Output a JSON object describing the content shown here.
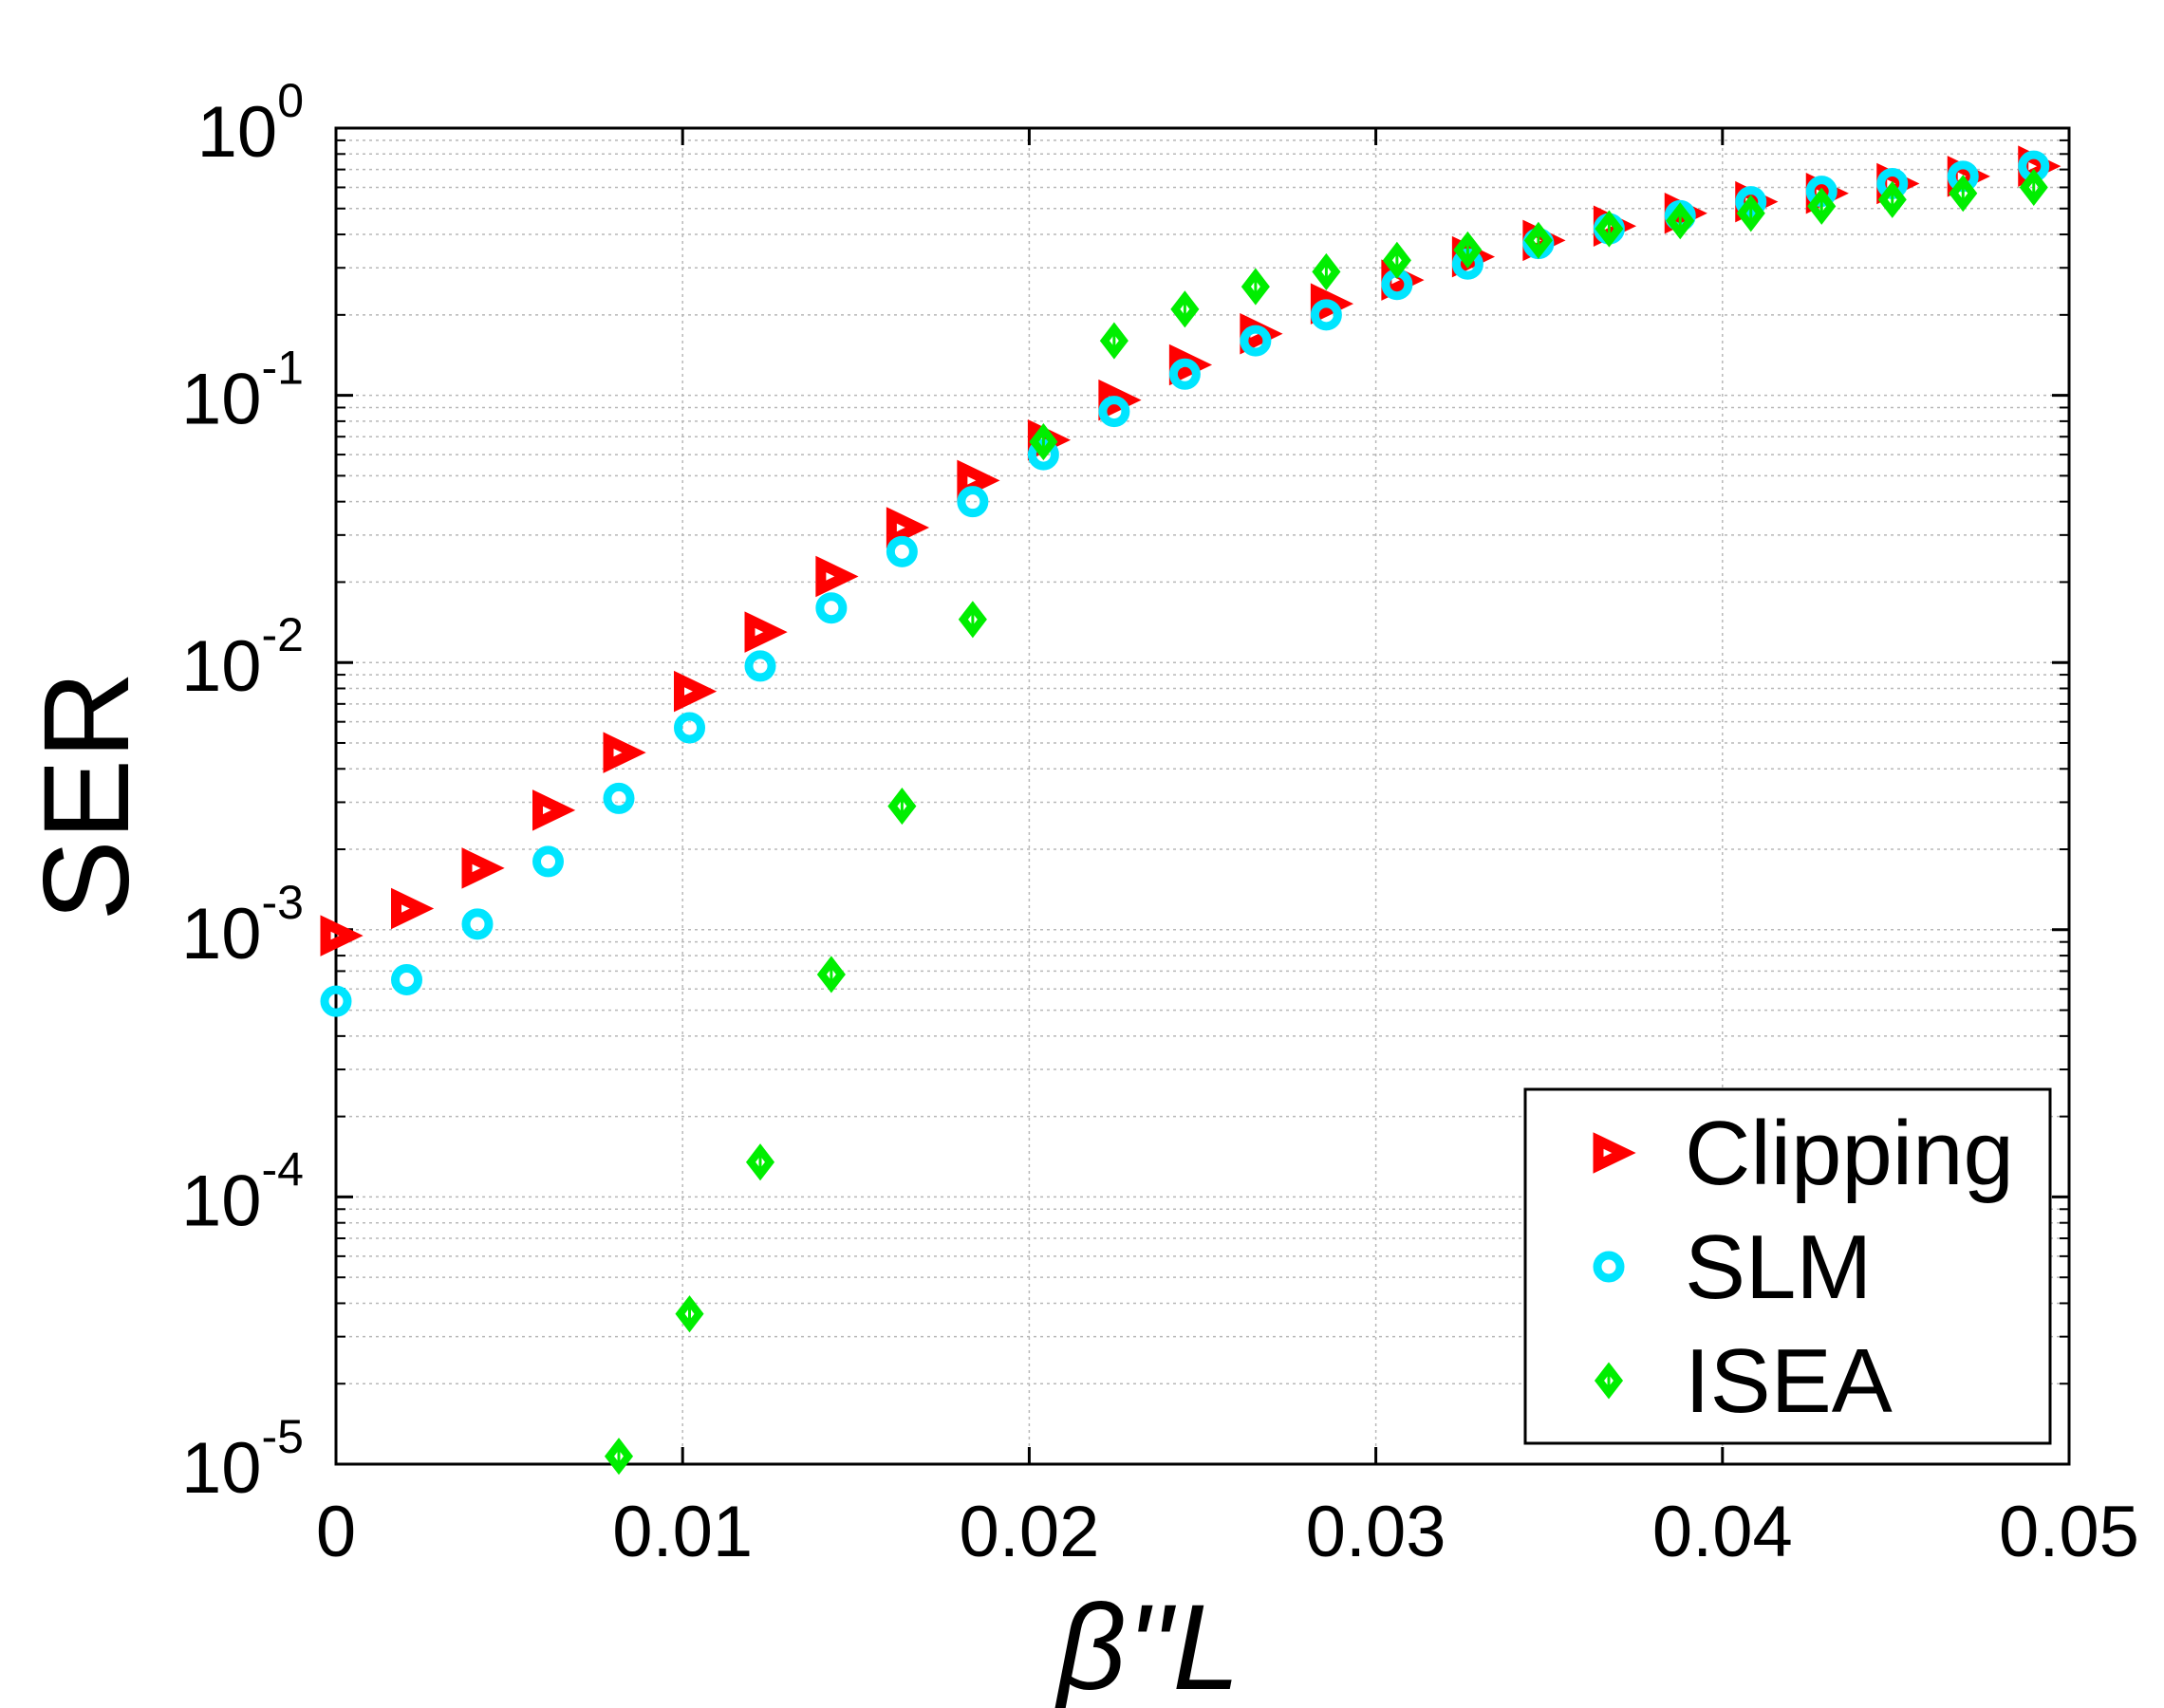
{
  "chart_data": {
    "type": "scatter",
    "title": "",
    "xlabel": "β''L",
    "ylabel": "SER",
    "xlim": [
      0,
      0.05
    ],
    "ylim": [
      1e-05,
      1
    ],
    "yscale": "log",
    "grid": true,
    "legend_position": "bottom-right",
    "x_ticks": [
      {
        "value": 0,
        "label": "0"
      },
      {
        "value": 0.01,
        "label": "0.01"
      },
      {
        "value": 0.02,
        "label": "0.02"
      },
      {
        "value": 0.03,
        "label": "0.03"
      },
      {
        "value": 0.04,
        "label": "0.04"
      },
      {
        "value": 0.05,
        "label": "0.05"
      }
    ],
    "y_ticks": [
      {
        "value": 1,
        "base": "10",
        "exp": "0"
      },
      {
        "value": 0.1,
        "base": "10",
        "exp": "-1"
      },
      {
        "value": 0.01,
        "base": "10",
        "exp": "-2"
      },
      {
        "value": 0.001,
        "base": "10",
        "exp": "-3"
      },
      {
        "value": 0.0001,
        "base": "10",
        "exp": "-4"
      },
      {
        "value": 1e-05,
        "base": "10",
        "exp": "-5"
      }
    ],
    "series": [
      {
        "name": "Clipping",
        "marker": "triangle-right",
        "color": "#ff0000",
        "x": [
          0,
          0.00204,
          0.00408,
          0.00612,
          0.00816,
          0.0102,
          0.01224,
          0.01429,
          0.01633,
          0.01837,
          0.02041,
          0.02245,
          0.02449,
          0.02653,
          0.02857,
          0.03061,
          0.03265,
          0.03469,
          0.03673,
          0.03878,
          0.04082,
          0.04286,
          0.0449,
          0.04694,
          0.04898
        ],
        "y": [
          0.00095,
          0.0012,
          0.0017,
          0.0028,
          0.0046,
          0.0078,
          0.013,
          0.021,
          0.032,
          0.048,
          0.068,
          0.096,
          0.13,
          0.17,
          0.22,
          0.27,
          0.33,
          0.38,
          0.43,
          0.48,
          0.53,
          0.57,
          0.62,
          0.66,
          0.72
        ]
      },
      {
        "name": "SLM",
        "marker": "circle",
        "color": "#00e5ff",
        "x": [
          0,
          0.00204,
          0.00408,
          0.00612,
          0.00816,
          0.0102,
          0.01224,
          0.01429,
          0.01633,
          0.01837,
          0.02041,
          0.02245,
          0.02449,
          0.02653,
          0.02857,
          0.03061,
          0.03265,
          0.03469,
          0.03673,
          0.03878,
          0.04082,
          0.04286,
          0.0449,
          0.04694,
          0.04898
        ],
        "y": [
          0.00054,
          0.00065,
          0.00105,
          0.0018,
          0.0031,
          0.0057,
          0.0097,
          0.016,
          0.026,
          0.04,
          0.06,
          0.087,
          0.12,
          0.16,
          0.2,
          0.26,
          0.31,
          0.37,
          0.42,
          0.47,
          0.53,
          0.58,
          0.62,
          0.66,
          0.72
        ]
      },
      {
        "name": "ISEA",
        "marker": "diamond",
        "color": "#00ee00",
        "x": [
          0.00816,
          0.0102,
          0.01224,
          0.01429,
          0.01633,
          0.01837,
          0.02041,
          0.02245,
          0.02449,
          0.02653,
          0.02857,
          0.03061,
          0.03265,
          0.03469,
          0.03673,
          0.03878,
          0.04082,
          0.04286,
          0.0449,
          0.04694,
          0.04898
        ],
        "y": [
          1.07e-05,
          3.65e-05,
          0.000135,
          0.00068,
          0.0029,
          0.0145,
          0.067,
          0.16,
          0.21,
          0.255,
          0.29,
          0.32,
          0.35,
          0.38,
          0.42,
          0.45,
          0.48,
          0.51,
          0.54,
          0.57,
          0.6
        ]
      }
    ]
  }
}
